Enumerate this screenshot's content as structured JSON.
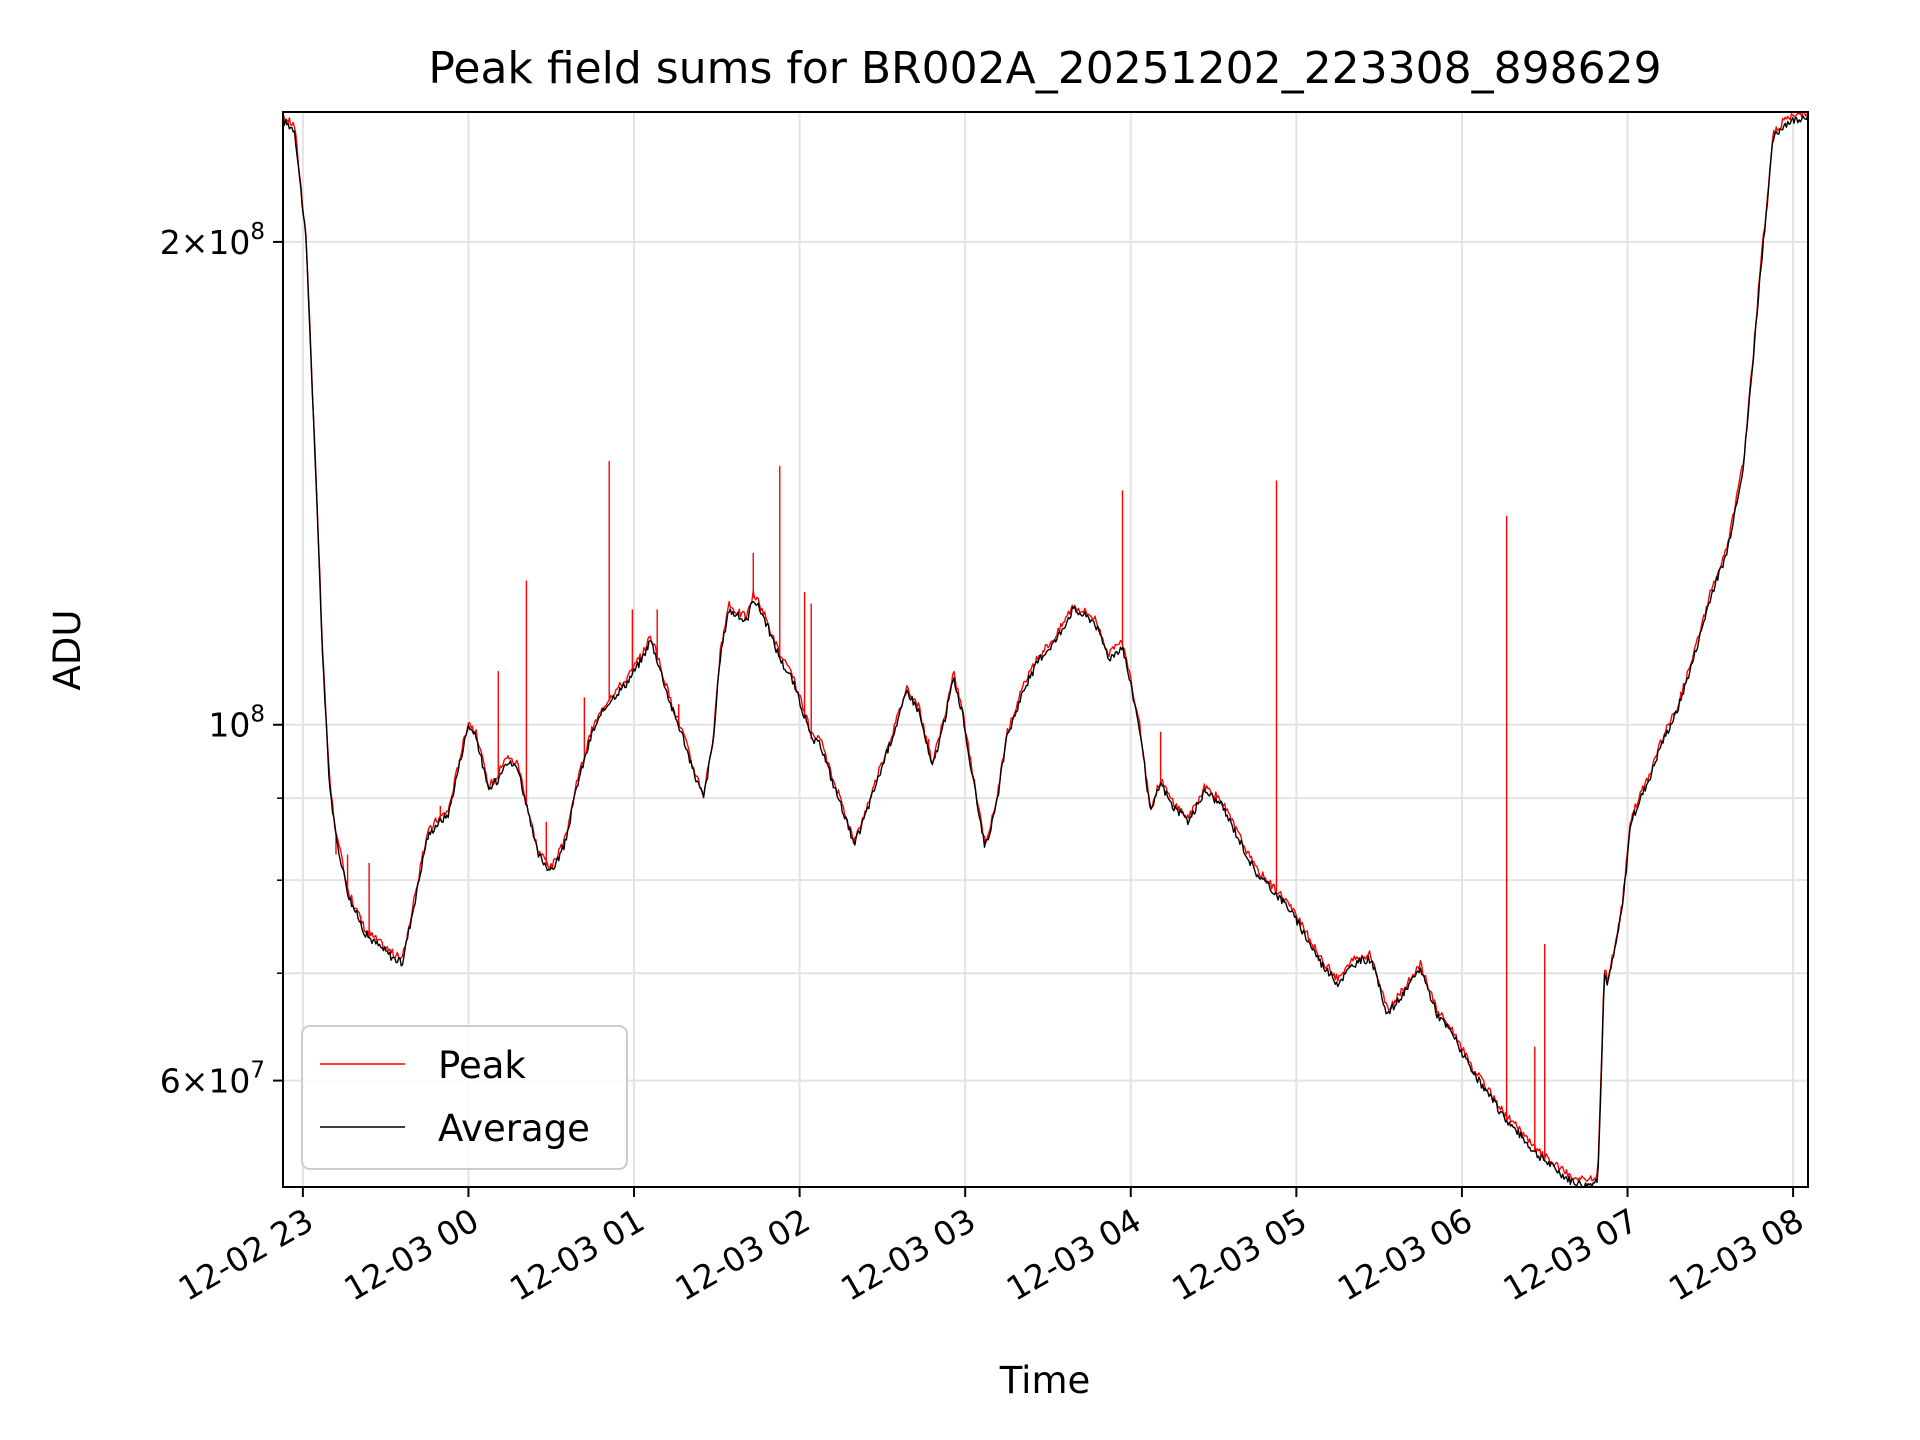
{
  "chart_data": {
    "type": "line",
    "title": "Peak field sums for BR002A_20251202_223308_898629",
    "xlabel": "Time",
    "ylabel": "ADU",
    "y_scale": "log",
    "ylim": [
      51500000,
      241000000
    ],
    "xlim_hours": [
      -1.12,
      8.09
    ],
    "x_ticks": [
      {
        "hour": -1,
        "label": "12-02 23"
      },
      {
        "hour": 0,
        "label": "12-03 00"
      },
      {
        "hour": 1,
        "label": "12-03 01"
      },
      {
        "hour": 2,
        "label": "12-03 02"
      },
      {
        "hour": 3,
        "label": "12-03 03"
      },
      {
        "hour": 4,
        "label": "12-03 04"
      },
      {
        "hour": 5,
        "label": "12-03 05"
      },
      {
        "hour": 6,
        "label": "12-03 06"
      },
      {
        "hour": 7,
        "label": "12-03 07"
      },
      {
        "hour": 8,
        "label": "12-03 08"
      }
    ],
    "y_major_ticks": [
      {
        "value": 60000000,
        "base": "6",
        "exp": "7"
      },
      {
        "value": 100000000,
        "base": "",
        "exp": "8"
      },
      {
        "value": 200000000,
        "base": "2",
        "exp": "8"
      }
    ],
    "y_minor_ticks": [
      70000000,
      80000000,
      90000000
    ],
    "grid": true,
    "legend_position": "lower-left",
    "series": [
      {
        "name": "Peak",
        "color": "#ff0000",
        "spikes": [
          [
            -0.8,
            83000000
          ],
          [
            -0.73,
            83000000
          ],
          [
            -0.65,
            76000000
          ],
          [
            -0.6,
            82000000
          ],
          [
            -0.17,
            89000000
          ],
          [
            0.18,
            108000000
          ],
          [
            0.35,
            123000000
          ],
          [
            0.47,
            87000000
          ],
          [
            0.7,
            104000000
          ],
          [
            0.85,
            146000000
          ],
          [
            0.99,
            118000000
          ],
          [
            1.14,
            118000000
          ],
          [
            1.27,
            103000000
          ],
          [
            1.72,
            128000000
          ],
          [
            1.88,
            145000000
          ],
          [
            2.03,
            121000000
          ],
          [
            2.07,
            119000000
          ],
          [
            2.78,
            98000000
          ],
          [
            3.95,
            140000000
          ],
          [
            4.18,
            99000000
          ],
          [
            4.88,
            142000000
          ],
          [
            6.27,
            135000000
          ],
          [
            6.44,
            63000000
          ],
          [
            6.5,
            73000000
          ]
        ]
      },
      {
        "name": "Average",
        "color": "#000000",
        "x": [
          -1.12,
          -1.05,
          -0.98,
          -0.93,
          -0.88,
          -0.84,
          -0.8,
          -0.72,
          -0.62,
          -0.52,
          -0.45,
          -0.4,
          -0.32,
          -0.25,
          -0.2,
          -0.12,
          -0.05,
          0.0,
          0.05,
          0.12,
          0.18,
          0.22,
          0.3,
          0.36,
          0.42,
          0.5,
          0.58,
          0.66,
          0.75,
          0.85,
          0.95,
          1.05,
          1.1,
          1.15,
          1.22,
          1.3,
          1.35,
          1.42,
          1.48,
          1.52,
          1.57,
          1.62,
          1.68,
          1.72,
          1.78,
          1.85,
          1.9,
          1.95,
          2.02,
          2.07,
          2.13,
          2.2,
          2.27,
          2.33,
          2.4,
          2.48,
          2.57,
          2.65,
          2.72,
          2.8,
          2.87,
          2.93,
          2.98,
          3.05,
          3.12,
          3.18,
          3.25,
          3.35,
          3.45,
          3.55,
          3.65,
          3.72,
          3.78,
          3.87,
          3.95,
          4.05,
          4.12,
          4.18,
          4.25,
          4.35,
          4.45,
          4.55,
          4.65,
          4.75,
          4.85,
          4.95,
          5.05,
          5.15,
          5.25,
          5.35,
          5.45,
          5.55,
          5.65,
          5.75,
          5.85,
          5.95,
          6.05,
          6.15,
          6.25,
          6.35,
          6.45,
          6.55,
          6.65,
          6.75,
          6.82,
          6.84,
          6.86,
          6.88,
          6.92,
          6.97,
          7.02,
          7.08,
          7.14,
          7.2,
          7.3,
          7.4,
          7.5,
          7.6,
          7.7,
          7.75,
          7.8,
          7.88,
          7.95,
          8.09
        ],
        "values": [
          238000000,
          235000000,
          200000000,
          150000000,
          110000000,
          92000000,
          85000000,
          78000000,
          74000000,
          72500000,
          71500000,
          71000000,
          78000000,
          85000000,
          86500000,
          88000000,
          95000000,
          100000000,
          98000000,
          91000000,
          92500000,
          95000000,
          94000000,
          88000000,
          83000000,
          81000000,
          84000000,
          92000000,
          99000000,
          103500000,
          106000000,
          110000000,
          113000000,
          109000000,
          103000000,
          98000000,
          94000000,
          90000000,
          98000000,
          110000000,
          118000000,
          117000000,
          116000000,
          120000000,
          117000000,
          112000000,
          109000000,
          107000000,
          102000000,
          98000000,
          97000000,
          92000000,
          88000000,
          84000000,
          88000000,
          93000000,
          99000000,
          105000000,
          102000000,
          94000000,
          100000000,
          107000000,
          102000000,
          92000000,
          84000000,
          88000000,
          98000000,
          105000000,
          110000000,
          113000000,
          118000000,
          117000000,
          116000000,
          110000000,
          112000000,
          100000000,
          88000000,
          92000000,
          89000000,
          87000000,
          91000000,
          89000000,
          85000000,
          81000000,
          79000000,
          77000000,
          74000000,
          71000000,
          69000000,
          71000000,
          71500000,
          66000000,
          68000000,
          70500000,
          66000000,
          64000000,
          61000000,
          59000000,
          57000000,
          55500000,
          54000000,
          53000000,
          52000000,
          51600000,
          52000000,
          60000000,
          70000000,
          69000000,
          72000000,
          77000000,
          87000000,
          90000000,
          93000000,
          97000000,
          102000000,
          110000000,
          120000000,
          128000000,
          145000000,
          165000000,
          190000000,
          232000000,
          237000000,
          240000000
        ]
      }
    ]
  }
}
